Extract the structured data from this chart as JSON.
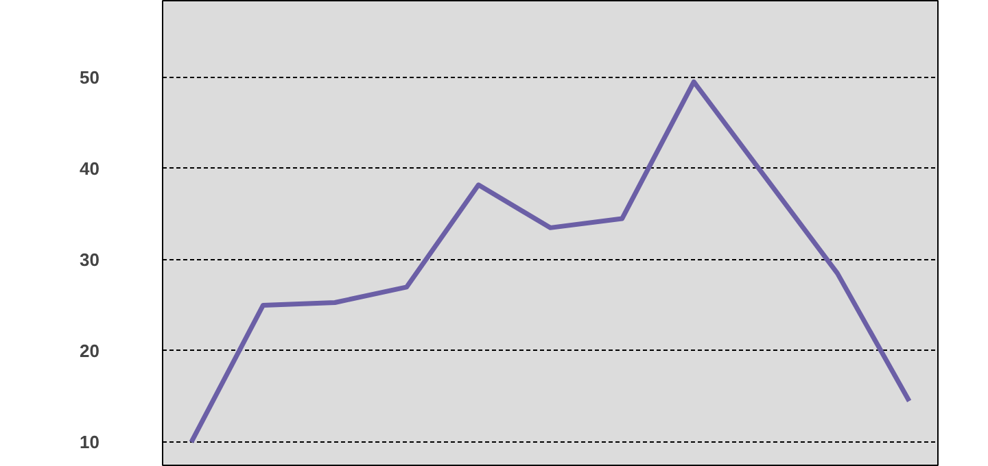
{
  "chart_data": {
    "type": "line",
    "categories": [
      null,
      null,
      null,
      null,
      null,
      null,
      null,
      null,
      null,
      null,
      null
    ],
    "series": [
      {
        "color": "#6b5fa6",
        "values": [
          10,
          25,
          25.3,
          27,
          38.2,
          33.5,
          34.5,
          49.5,
          39,
          28.5,
          14.5
        ]
      }
    ],
    "ylim": [
      7.3,
      58.4
    ],
    "yticks": [
      10,
      20,
      30,
      40,
      50
    ],
    "grid": "y",
    "marker": "none",
    "line_style": "solid"
  }
}
